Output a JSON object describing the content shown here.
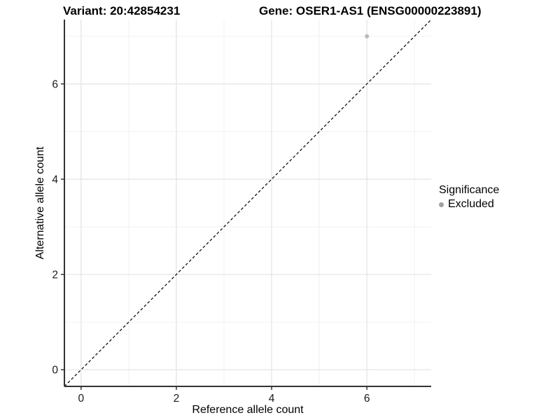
{
  "titles": {
    "variant": "Variant: 20:42854231",
    "gene": "Gene: OSER1-AS1 (ENSG00000223891)"
  },
  "chart_data": {
    "type": "scatter",
    "title_left": "Variant: 20:42854231",
    "title_right": "Gene: OSER1-AS1 (ENSG00000223891)",
    "xlabel": "Reference allele count",
    "ylabel": "Alternative allele count",
    "xlim": [
      -0.35,
      7.35
    ],
    "ylim": [
      -0.35,
      7.35
    ],
    "xticks": [
      0,
      2,
      4,
      6
    ],
    "yticks": [
      0,
      2,
      4,
      6
    ],
    "minor_xticks": [
      1,
      3,
      5,
      7
    ],
    "minor_yticks": [
      1,
      3,
      5,
      7
    ],
    "grid": "on",
    "reference_line": {
      "type": "identity y=x",
      "style": "dashed",
      "color": "#000000"
    },
    "series": [
      {
        "name": "Excluded",
        "color": "#b9b9b9",
        "points": [
          {
            "x": 6,
            "y": 7
          }
        ]
      }
    ],
    "legend": {
      "title": "Significance",
      "position": "right",
      "entries": [
        {
          "label": "Excluded",
          "color": "#a0a0a0"
        }
      ]
    },
    "colors": {
      "background": "#ffffff",
      "grid_major": "#e3e3e3",
      "grid_minor": "#f0f0f0",
      "axis_line": "#333333",
      "tick_label": "#1a1a1a",
      "point": "#b9b9b9"
    }
  }
}
